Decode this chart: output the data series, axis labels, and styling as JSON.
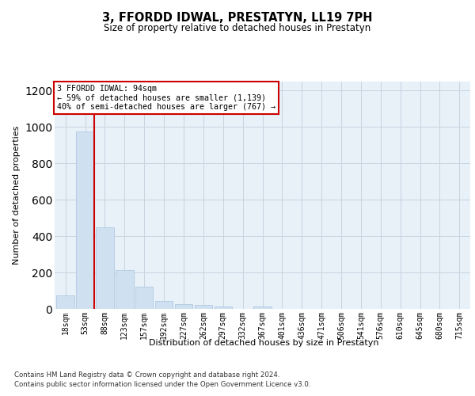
{
  "title": "3, FFORDD IDWAL, PRESTATYN, LL19 7PH",
  "subtitle": "Size of property relative to detached houses in Prestatyn",
  "xlabel": "Distribution of detached houses by size in Prestatyn",
  "ylabel": "Number of detached properties",
  "bar_color": "#cfe0f0",
  "bar_edge_color": "#a8c4df",
  "background_color": "#ffffff",
  "plot_bg_color": "#e8f0f8",
  "grid_color": "#c8d4e0",
  "annotation_line_color": "#cc0000",
  "annotation_box_color": "#cc0000",
  "annotation_text_line1": "3 FFORDD IDWAL: 94sqm",
  "annotation_text_line2": "← 59% of detached houses are smaller (1,139)",
  "annotation_text_line3": "40% of semi-detached houses are larger (767) →",
  "categories": [
    "18sqm",
    "53sqm",
    "88sqm",
    "123sqm",
    "157sqm",
    "192sqm",
    "227sqm",
    "262sqm",
    "297sqm",
    "332sqm",
    "367sqm",
    "401sqm",
    "436sqm",
    "471sqm",
    "506sqm",
    "541sqm",
    "576sqm",
    "610sqm",
    "645sqm",
    "680sqm",
    "715sqm"
  ],
  "values": [
    75,
    975,
    450,
    215,
    120,
    45,
    25,
    20,
    15,
    0,
    13,
    0,
    0,
    0,
    0,
    0,
    0,
    0,
    0,
    0,
    0
  ],
  "ylim": [
    0,
    1250
  ],
  "yticks": [
    0,
    200,
    400,
    600,
    800,
    1000,
    1200
  ],
  "red_line_bar_index": 1,
  "footnote_line1": "Contains HM Land Registry data © Crown copyright and database right 2024.",
  "footnote_line2": "Contains public sector information licensed under the Open Government Licence v3.0."
}
